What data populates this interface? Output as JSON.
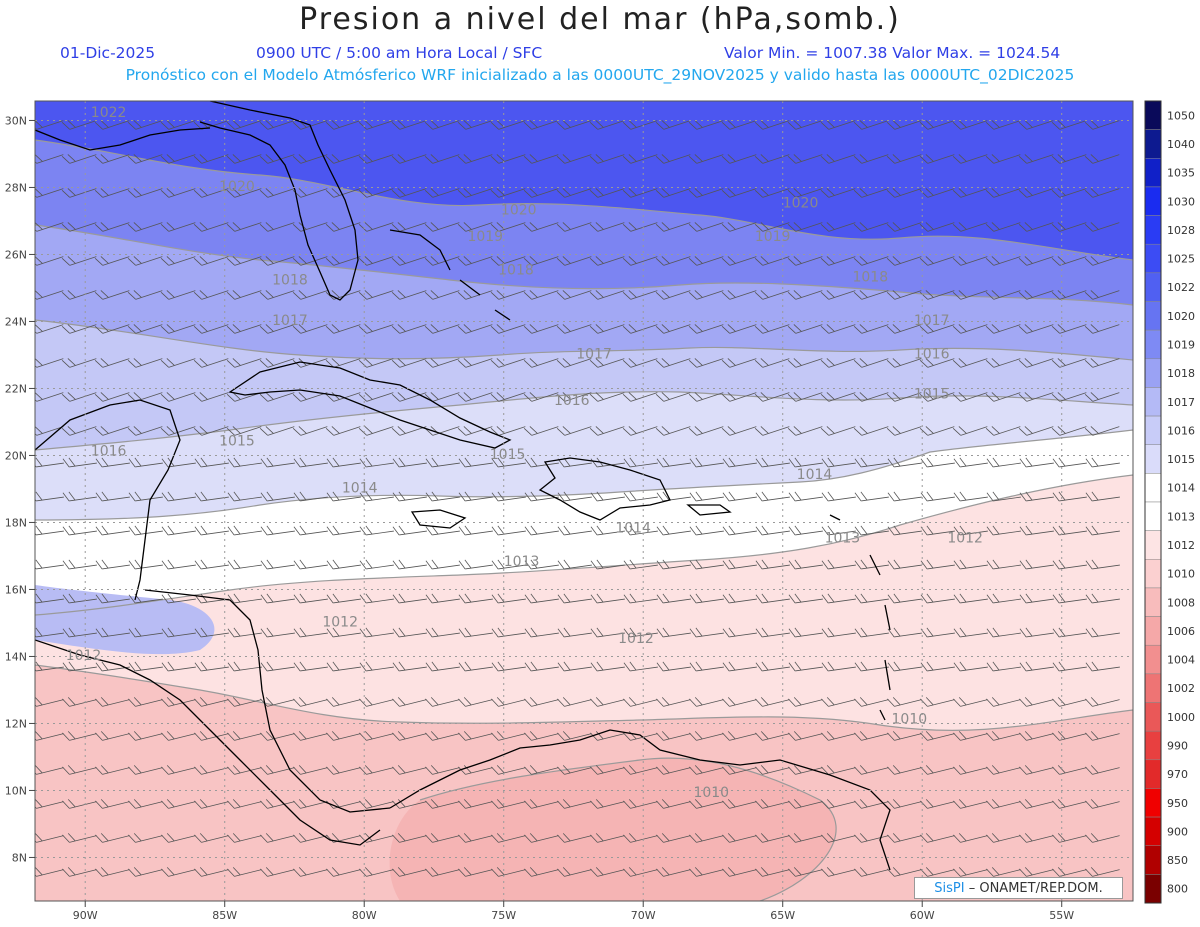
{
  "header": {
    "title": "Presion a nivel del mar (hPa,somb.)",
    "date": "01-Dic-2025",
    "time": "0900 UTC / 5:00 am Hora Local / SFC",
    "minmax": "Valor Min. = 1007.38  Valor Max. = 1024.54",
    "model_line": "Pronóstico con el Modelo Atmósferico WRF inicializado a las 0000UTC_29NOV2025 y valido hasta las  0000UTC_02DIC2025"
  },
  "axes": {
    "lon_labels": [
      "90W",
      "85W",
      "80W",
      "75W",
      "70W",
      "65W",
      "60W",
      "55W"
    ],
    "lat_labels": [
      "30N",
      "28N",
      "26N",
      "24N",
      "22N",
      "20N",
      "18N",
      "16N",
      "14N",
      "12N",
      "10N",
      "8N"
    ]
  },
  "colorbar": {
    "levels": [
      "1050",
      "1040",
      "1035",
      "1030",
      "1028",
      "1025",
      "1022",
      "1020",
      "1019",
      "1018",
      "1017",
      "1016",
      "1015",
      "1014",
      "1013",
      "1012",
      "1010",
      "1008",
      "1006",
      "1004",
      "1002",
      "1000",
      "990",
      "970",
      "950",
      "900",
      "850",
      "800"
    ],
    "colors": [
      "#0a0a5a",
      "#0d1a90",
      "#1020c8",
      "#1a2cf0",
      "#2a3cf4",
      "#3c4cf4",
      "#5060f2",
      "#6674f2",
      "#7e8af4",
      "#9aa2f4",
      "#b4baf6",
      "#c8ccf8",
      "#dadcfa",
      "#ffffff",
      "#ffffff",
      "#fde4e4",
      "#fbd0d0",
      "#f8bcbc",
      "#f5a8a8",
      "#f28f8f",
      "#ee7474",
      "#ea5858",
      "#e84040",
      "#e22a2a",
      "#f00000",
      "#d40000",
      "#b00000",
      "#7a0000"
    ]
  },
  "contour_labels": [
    {
      "text": "1022",
      "lon": -89.8,
      "lat": 30.1
    },
    {
      "text": "1020",
      "lon": -85.2,
      "lat": 27.9
    },
    {
      "text": "1020",
      "lon": -75.1,
      "lat": 27.2
    },
    {
      "text": "1020",
      "lon": -65.0,
      "lat": 27.4
    },
    {
      "text": "1019",
      "lon": -76.3,
      "lat": 26.4
    },
    {
      "text": "1019",
      "lon": -66.0,
      "lat": 26.4
    },
    {
      "text": "1018",
      "lon": -83.3,
      "lat": 25.1
    },
    {
      "text": "1018",
      "lon": -75.2,
      "lat": 25.4
    },
    {
      "text": "1018",
      "lon": -62.5,
      "lat": 25.2
    },
    {
      "text": "1017",
      "lon": -83.3,
      "lat": 23.9
    },
    {
      "text": "1017",
      "lon": -72.4,
      "lat": 22.9
    },
    {
      "text": "1017",
      "lon": -60.3,
      "lat": 23.9
    },
    {
      "text": "1016",
      "lon": -60.3,
      "lat": 22.9
    },
    {
      "text": "1016",
      "lon": -73.2,
      "lat": 21.5
    },
    {
      "text": "1016",
      "lon": -89.8,
      "lat": 20.0
    },
    {
      "text": "1015",
      "lon": -85.2,
      "lat": 20.3
    },
    {
      "text": "1015",
      "lon": -60.3,
      "lat": 21.7
    },
    {
      "text": "1015",
      "lon": -75.5,
      "lat": 19.9
    },
    {
      "text": "1014",
      "lon": -80.8,
      "lat": 18.9
    },
    {
      "text": "1014",
      "lon": -64.5,
      "lat": 19.3
    },
    {
      "text": "1014",
      "lon": -71.0,
      "lat": 17.7
    },
    {
      "text": "1013",
      "lon": -75.0,
      "lat": 16.7
    },
    {
      "text": "1013",
      "lon": -63.5,
      "lat": 17.4
    },
    {
      "text": "1012",
      "lon": -81.5,
      "lat": 14.9
    },
    {
      "text": "1012",
      "lon": -70.9,
      "lat": 14.4
    },
    {
      "text": "1012",
      "lon": -59.1,
      "lat": 17.4
    },
    {
      "text": "1012",
      "lon": -90.7,
      "lat": 13.9
    },
    {
      "text": "1010",
      "lon": -61.1,
      "lat": 12.0
    },
    {
      "text": "1010",
      "lon": -68.2,
      "lat": 9.8
    }
  ],
  "badge": {
    "brand": "SisPI",
    "text": " – ONAMET/REP.DOM."
  }
}
